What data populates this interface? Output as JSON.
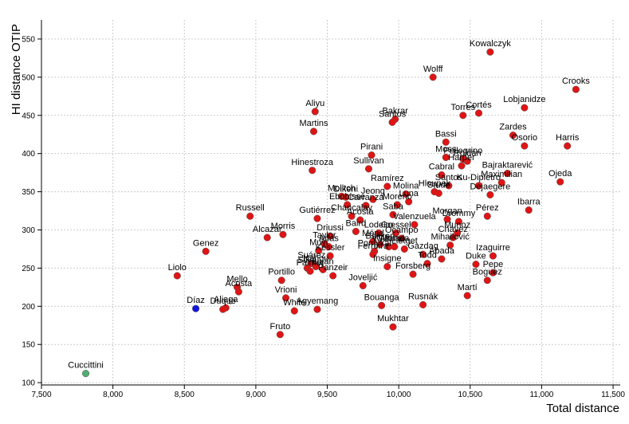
{
  "chart_data": {
    "type": "scatter",
    "xlabel": "Total distance",
    "ylabel": "HI distance OTIP",
    "xlim": [
      7500,
      11550
    ],
    "ylim": [
      97,
      575
    ],
    "x_ticks": [
      7500,
      8000,
      8500,
      9000,
      9500,
      10000,
      10500,
      11000,
      11500
    ],
    "x_tick_labels": [
      "7,500",
      "8,000",
      "8,500",
      "9,000",
      "9,500",
      "10,000",
      "10,500",
      "11,000",
      "11,500"
    ],
    "y_ticks": [
      100,
      150,
      200,
      250,
      300,
      350,
      400,
      450,
      500,
      550
    ],
    "y_tick_labels": [
      "100",
      "150",
      "200",
      "250",
      "300",
      "350",
      "400",
      "450",
      "500",
      "550"
    ],
    "grid": true,
    "colors": {
      "default": "#e01414",
      "highlight": "#1414e0",
      "reference": "#4caf70"
    },
    "points": [
      {
        "label": "Kowalczyk",
        "x": 10640,
        "y": 533,
        "color": "default"
      },
      {
        "label": "Wolff",
        "x": 10240,
        "y": 500,
        "color": "default"
      },
      {
        "label": "Crooks",
        "x": 11240,
        "y": 484,
        "color": "default"
      },
      {
        "label": "Lobjanidze",
        "x": 10880,
        "y": 460,
        "color": "default"
      },
      {
        "label": "Aliyu",
        "x": 9415,
        "y": 455,
        "color": "default"
      },
      {
        "label": "Bakrar",
        "x": 9975,
        "y": 445,
        "color": "default"
      },
      {
        "label": "Santos",
        "x": 9955,
        "y": 441,
        "color": "default"
      },
      {
        "label": "Torres",
        "x": 10450,
        "y": 450,
        "color": "default"
      },
      {
        "label": "Cortés",
        "x": 10560,
        "y": 453,
        "color": "default"
      },
      {
        "label": "Martins",
        "x": 9405,
        "y": 429,
        "color": "default"
      },
      {
        "label": "Zardes",
        "x": 10800,
        "y": 424,
        "color": "default"
      },
      {
        "label": "Osorio",
        "x": 10880,
        "y": 410,
        "color": "default"
      },
      {
        "label": "Harris",
        "x": 11180,
        "y": 410,
        "color": "default"
      },
      {
        "label": "Bassi",
        "x": 10330,
        "y": 415,
        "color": "default"
      },
      {
        "label": "Pirani",
        "x": 9810,
        "y": 398,
        "color": "default"
      },
      {
        "label": "Moss",
        "x": 10330,
        "y": 395,
        "color": "default"
      },
      {
        "label": "Roldán",
        "x": 10480,
        "y": 390,
        "color": "default"
      },
      {
        "label": "Pellegrino",
        "x": 10450,
        "y": 393,
        "color": "default"
      },
      {
        "label": "Harper",
        "x": 10440,
        "y": 384,
        "color": "default"
      },
      {
        "label": "Cabral",
        "x": 10300,
        "y": 372,
        "color": "default"
      },
      {
        "label": "Sullivan",
        "x": 9790,
        "y": 380,
        "color": "default"
      },
      {
        "label": "Hinestroza",
        "x": 9395,
        "y": 378,
        "color": "default"
      },
      {
        "label": "Bajraktarević",
        "x": 10760,
        "y": 374,
        "color": "default"
      },
      {
        "label": "Maximilian",
        "x": 10720,
        "y": 362,
        "color": "default"
      },
      {
        "label": "Ojeda",
        "x": 11130,
        "y": 363,
        "color": "default"
      },
      {
        "label": "Ku-Dipietro",
        "x": 10560,
        "y": 358,
        "color": "default"
      },
      {
        "label": "Santos",
        "x": 10350,
        "y": 358,
        "color": "default"
      },
      {
        "label": "Hloupek",
        "x": 10250,
        "y": 350,
        "color": "default"
      },
      {
        "label": "Stude",
        "x": 10280,
        "y": 348,
        "color": "default"
      },
      {
        "label": "Dejaegere",
        "x": 10640,
        "y": 346,
        "color": "default"
      },
      {
        "label": "Ramírez",
        "x": 9920,
        "y": 357,
        "color": "default"
      },
      {
        "label": "Molina",
        "x": 10050,
        "y": 347,
        "color": "default"
      },
      {
        "label": "Moiitch",
        "x": 9600,
        "y": 344,
        "color": "default"
      },
      {
        "label": "Dikeni",
        "x": 9630,
        "y": 343,
        "color": "default"
      },
      {
        "label": "Jeong",
        "x": 9820,
        "y": 340,
        "color": "default"
      },
      {
        "label": "Luna",
        "x": 10070,
        "y": 337,
        "color": "default"
      },
      {
        "label": "Ebobisse",
        "x": 9640,
        "y": 333,
        "color": "default"
      },
      {
        "label": "Carranza",
        "x": 9770,
        "y": 332,
        "color": "default"
      },
      {
        "label": "Moreno",
        "x": 9990,
        "y": 333,
        "color": "default"
      },
      {
        "label": "Ibarra",
        "x": 10910,
        "y": 326,
        "color": "default"
      },
      {
        "label": "Pérez",
        "x": 10620,
        "y": 318,
        "color": "default"
      },
      {
        "label": "Russell",
        "x": 8960,
        "y": 318,
        "color": "default"
      },
      {
        "label": "Gutiérrez",
        "x": 9430,
        "y": 315,
        "color": "default"
      },
      {
        "label": "Chancalay",
        "x": 9670,
        "y": 318,
        "color": "default"
      },
      {
        "label": "Saba",
        "x": 9960,
        "y": 320,
        "color": "default"
      },
      {
        "label": "Morgan",
        "x": 10340,
        "y": 314,
        "color": "default"
      },
      {
        "label": "Acosta",
        "x": 9730,
        "y": 313,
        "color": "default"
      },
      {
        "label": "Valenzuela",
        "x": 10110,
        "y": 307,
        "color": "default"
      },
      {
        "label": "Drommy",
        "x": 10420,
        "y": 311,
        "color": "default"
      },
      {
        "label": "Munoz",
        "x": 10410,
        "y": 296,
        "color": "default"
      },
      {
        "label": "Morris",
        "x": 9190,
        "y": 294,
        "color": "default"
      },
      {
        "label": "Alcazar",
        "x": 9080,
        "y": 290,
        "color": "default"
      },
      {
        "label": "Driussi",
        "x": 9520,
        "y": 292,
        "color": "default"
      },
      {
        "label": "Baird",
        "x": 9700,
        "y": 298,
        "color": "default"
      },
      {
        "label": "Lodeiro",
        "x": 9860,
        "y": 296,
        "color": "default"
      },
      {
        "label": "Gressel",
        "x": 9980,
        "y": 296,
        "color": "default"
      },
      {
        "label": "Genez",
        "x": 8650,
        "y": 272,
        "color": "default"
      },
      {
        "label": "Taylor",
        "x": 9480,
        "y": 282,
        "color": "default"
      },
      {
        "label": "Arias",
        "x": 9510,
        "y": 278,
        "color": "default"
      },
      {
        "label": "Muyl",
        "x": 9440,
        "y": 273,
        "color": "default"
      },
      {
        "label": "Ménd",
        "x": 9820,
        "y": 285,
        "color": "default"
      },
      {
        "label": "Bakkeri",
        "x": 9870,
        "y": 281,
        "color": "default"
      },
      {
        "label": "Williams",
        "x": 9930,
        "y": 278,
        "color": "default"
      },
      {
        "label": "Pomykal",
        "x": 9830,
        "y": 272,
        "color": "default"
      },
      {
        "label": "Ferreira",
        "x": 9820,
        "y": 268,
        "color": "default"
      },
      {
        "label": "Almada",
        "x": 9970,
        "y": 278,
        "color": "default"
      },
      {
        "label": "Lletget",
        "x": 10040,
        "y": 275,
        "color": "default"
      },
      {
        "label": "Ocampo",
        "x": 10020,
        "y": 289,
        "color": "default"
      },
      {
        "label": "Chávez",
        "x": 10380,
        "y": 290,
        "color": "default"
      },
      {
        "label": "Mihailović",
        "x": 10360,
        "y": 280,
        "color": "default"
      },
      {
        "label": "Kessler",
        "x": 9520,
        "y": 266,
        "color": "default"
      },
      {
        "label": "Gazdag",
        "x": 10170,
        "y": 268,
        "color": "default"
      },
      {
        "label": "Abada",
        "x": 10300,
        "y": 262,
        "color": "default"
      },
      {
        "label": "Izaguirre",
        "x": 10660,
        "y": 266,
        "color": "default"
      },
      {
        "label": "Suárez",
        "x": 9390,
        "y": 256,
        "color": "default"
      },
      {
        "label": "Silva",
        "x": 9360,
        "y": 250,
        "color": "default"
      },
      {
        "label": "Nahou",
        "x": 9420,
        "y": 252,
        "color": "default"
      },
      {
        "label": "Palmer",
        "x": 9380,
        "y": 246,
        "color": "default"
      },
      {
        "label": "Luján",
        "x": 9470,
        "y": 248,
        "color": "default"
      },
      {
        "label": "Insigne",
        "x": 9920,
        "y": 252,
        "color": "default"
      },
      {
        "label": "Todd",
        "x": 10200,
        "y": 256,
        "color": "default"
      },
      {
        "label": "Duke",
        "x": 10540,
        "y": 255,
        "color": "default"
      },
      {
        "label": "Pepe",
        "x": 10660,
        "y": 244,
        "color": "default"
      },
      {
        "label": "Portillo",
        "x": 9180,
        "y": 234,
        "color": "default"
      },
      {
        "label": "Panzeir",
        "x": 9540,
        "y": 240,
        "color": "default"
      },
      {
        "label": "Forsberg",
        "x": 10100,
        "y": 242,
        "color": "default"
      },
      {
        "label": "Liolo",
        "x": 8450,
        "y": 240,
        "color": "default"
      },
      {
        "label": "Boguez",
        "x": 10620,
        "y": 234,
        "color": "default"
      },
      {
        "label": "Mello",
        "x": 8870,
        "y": 225,
        "color": "default"
      },
      {
        "label": "Acosta",
        "x": 8880,
        "y": 219,
        "color": "default"
      },
      {
        "label": "Joveljić",
        "x": 9750,
        "y": 227,
        "color": "default"
      },
      {
        "label": "Martí",
        "x": 10480,
        "y": 214,
        "color": "default"
      },
      {
        "label": "Vrioni",
        "x": 9210,
        "y": 211,
        "color": "default"
      },
      {
        "label": "Bouanga",
        "x": 9880,
        "y": 201,
        "color": "default"
      },
      {
        "label": "Rusnák",
        "x": 10170,
        "y": 202,
        "color": "default"
      },
      {
        "label": "Díaz",
        "x": 8580,
        "y": 197,
        "color": "highlight"
      },
      {
        "label": "Aliaga",
        "x": 8790,
        "y": 198,
        "color": "default"
      },
      {
        "label": "Duque",
        "x": 8770,
        "y": 196,
        "color": "default"
      },
      {
        "label": "White",
        "x": 9270,
        "y": 194,
        "color": "default"
      },
      {
        "label": "Agyemang",
        "x": 9430,
        "y": 196,
        "color": "default"
      },
      {
        "label": "Mukhtar",
        "x": 9960,
        "y": 173,
        "color": "default"
      },
      {
        "label": "Fruto",
        "x": 9170,
        "y": 163,
        "color": "default"
      },
      {
        "label": "Cuccittini",
        "x": 7810,
        "y": 112,
        "color": "reference"
      }
    ]
  }
}
